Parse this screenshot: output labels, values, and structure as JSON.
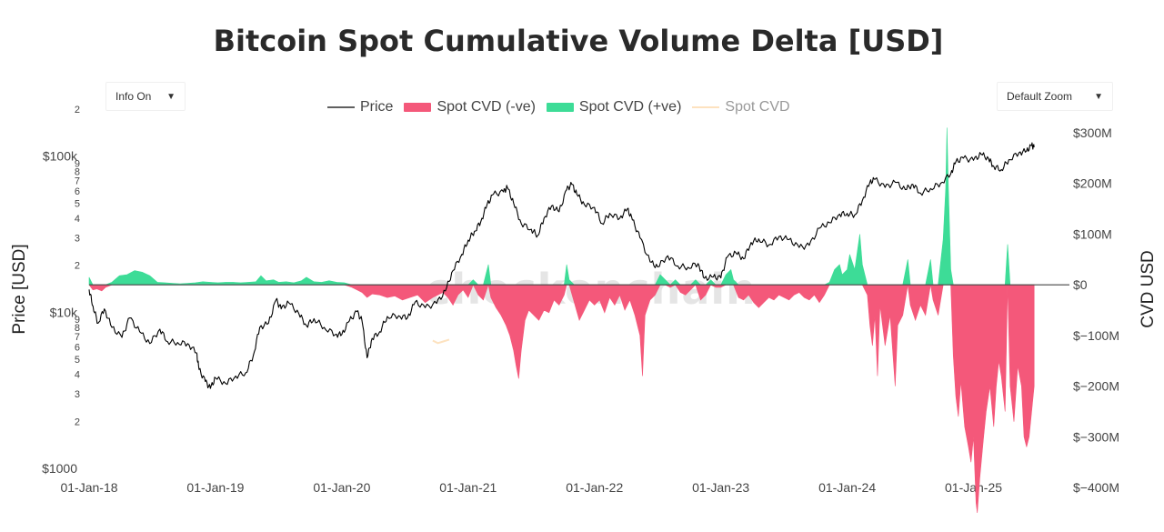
{
  "title": "Bitcoin Spot Cumulative Volume Delta [USD]",
  "controls": {
    "info_label": "Info On",
    "zoom_label": "Default Zoom"
  },
  "watermark": "checkonchain",
  "colors": {
    "price": "#000000",
    "cvd_neg": "#f4587a",
    "cvd_pos": "#3ddc97",
    "cvd": "#fde2bf"
  },
  "chart_data": {
    "type": "line+area",
    "title": "Bitcoin Spot Cumulative Volume Delta [USD]",
    "x_ticks": [
      "01-Jan-18",
      "01-Jan-19",
      "01-Jan-20",
      "01-Jan-21",
      "01-Jan-22",
      "01-Jan-23",
      "01-Jan-24",
      "01-Jan-25"
    ],
    "x_range": [
      2018.0,
      2025.5
    ],
    "y_left": {
      "label": "Price [USD]",
      "scale": "log",
      "range": [
        1000,
        200000
      ],
      "major_ticks": [
        {
          "v": 1000,
          "t": "$1000"
        },
        {
          "v": 10000,
          "t": "$10k"
        },
        {
          "v": 100000,
          "t": "$100k"
        }
      ],
      "minor_ticks": [
        {
          "v": 2000,
          "t": "2"
        },
        {
          "v": 3000,
          "t": "3"
        },
        {
          "v": 4000,
          "t": "4"
        },
        {
          "v": 5000,
          "t": "5"
        },
        {
          "v": 6000,
          "t": "6"
        },
        {
          "v": 7000,
          "t": "7"
        },
        {
          "v": 8000,
          "t": "8"
        },
        {
          "v": 9000,
          "t": "9"
        },
        {
          "v": 20000,
          "t": "2"
        },
        {
          "v": 30000,
          "t": "3"
        },
        {
          "v": 40000,
          "t": "4"
        },
        {
          "v": 50000,
          "t": "5"
        },
        {
          "v": 60000,
          "t": "6"
        },
        {
          "v": 70000,
          "t": "7"
        },
        {
          "v": 80000,
          "t": "8"
        },
        {
          "v": 90000,
          "t": "9"
        },
        {
          "v": 200000,
          "t": "2"
        }
      ]
    },
    "y_right": {
      "label": "CVD USD",
      "range": [
        -450,
        300
      ],
      "ticks": [
        {
          "v": 300,
          "t": "$300M"
        },
        {
          "v": 200,
          "t": "$200M"
        },
        {
          "v": 100,
          "t": "$100M"
        },
        {
          "v": 0,
          "t": "$0"
        },
        {
          "v": -100,
          "t": "$−100M"
        },
        {
          "v": -200,
          "t": "$−200M"
        },
        {
          "v": -300,
          "t": "$−300M"
        },
        {
          "v": -400,
          "t": "$−400M"
        }
      ]
    },
    "legend": [
      {
        "name": "Price",
        "key": "price",
        "style": "line",
        "visible": true
      },
      {
        "name": "Spot CVD (-ve)",
        "key": "cvd_neg",
        "style": "area",
        "visible": true
      },
      {
        "name": "Spot CVD (+ve)",
        "key": "cvd_pos",
        "style": "area",
        "visible": true
      },
      {
        "name": "Spot CVD",
        "key": "cvd",
        "style": "line",
        "visible": false
      }
    ],
    "price_series": [
      [
        2018.0,
        14000
      ],
      [
        2018.03,
        11000
      ],
      [
        2018.07,
        8500
      ],
      [
        2018.12,
        10500
      ],
      [
        2018.18,
        8000
      ],
      [
        2018.26,
        6900
      ],
      [
        2018.32,
        9200
      ],
      [
        2018.4,
        7500
      ],
      [
        2018.48,
        6300
      ],
      [
        2018.56,
        7800
      ],
      [
        2018.62,
        6500
      ],
      [
        2018.7,
        6400
      ],
      [
        2018.78,
        6300
      ],
      [
        2018.85,
        5500
      ],
      [
        2018.87,
        4300
      ],
      [
        2018.92,
        3600
      ],
      [
        2018.96,
        3250
      ],
      [
        2019.0,
        3800
      ],
      [
        2019.08,
        3500
      ],
      [
        2019.16,
        3900
      ],
      [
        2019.24,
        4100
      ],
      [
        2019.3,
        5300
      ],
      [
        2019.35,
        8000
      ],
      [
        2019.42,
        8500
      ],
      [
        2019.48,
        12000
      ],
      [
        2019.52,
        10500
      ],
      [
        2019.58,
        11500
      ],
      [
        2019.66,
        9800
      ],
      [
        2019.72,
        8200
      ],
      [
        2019.78,
        9100
      ],
      [
        2019.86,
        8000
      ],
      [
        2019.95,
        7200
      ],
      [
        2020.0,
        7200
      ],
      [
        2020.06,
        8800
      ],
      [
        2020.12,
        10100
      ],
      [
        2020.16,
        8800
      ],
      [
        2020.2,
        5100
      ],
      [
        2020.24,
        6800
      ],
      [
        2020.3,
        7500
      ],
      [
        2020.36,
        9400
      ],
      [
        2020.45,
        9500
      ],
      [
        2020.52,
        9200
      ],
      [
        2020.58,
        11600
      ],
      [
        2020.66,
        10700
      ],
      [
        2020.75,
        11400
      ],
      [
        2020.82,
        13700
      ],
      [
        2020.88,
        18500
      ],
      [
        2020.95,
        23500
      ],
      [
        2021.0,
        29000
      ],
      [
        2021.05,
        33000
      ],
      [
        2021.1,
        38000
      ],
      [
        2021.15,
        49000
      ],
      [
        2021.2,
        57000
      ],
      [
        2021.28,
        59000
      ],
      [
        2021.31,
        63000
      ],
      [
        2021.36,
        50000
      ],
      [
        2021.42,
        37000
      ],
      [
        2021.5,
        34000
      ],
      [
        2021.55,
        31000
      ],
      [
        2021.6,
        40000
      ],
      [
        2021.66,
        48000
      ],
      [
        2021.72,
        44000
      ],
      [
        2021.78,
        61000
      ],
      [
        2021.82,
        66000
      ],
      [
        2021.86,
        57000
      ],
      [
        2021.92,
        49000
      ],
      [
        2022.0,
        47000
      ],
      [
        2022.06,
        37000
      ],
      [
        2022.12,
        43000
      ],
      [
        2022.2,
        40000
      ],
      [
        2022.26,
        46000
      ],
      [
        2022.3,
        39000
      ],
      [
        2022.36,
        30000
      ],
      [
        2022.44,
        21000
      ],
      [
        2022.5,
        19500
      ],
      [
        2022.58,
        23000
      ],
      [
        2022.66,
        19800
      ],
      [
        2022.74,
        19400
      ],
      [
        2022.82,
        20500
      ],
      [
        2022.87,
        16500
      ],
      [
        2022.94,
        16800
      ],
      [
        2023.0,
        16600
      ],
      [
        2023.05,
        22500
      ],
      [
        2023.12,
        24000
      ],
      [
        2023.18,
        22000
      ],
      [
        2023.24,
        28000
      ],
      [
        2023.3,
        29500
      ],
      [
        2023.38,
        27000
      ],
      [
        2023.46,
        30500
      ],
      [
        2023.54,
        29200
      ],
      [
        2023.62,
        26000
      ],
      [
        2023.7,
        26800
      ],
      [
        2023.78,
        34500
      ],
      [
        2023.86,
        37500
      ],
      [
        2023.94,
        42500
      ],
      [
        2024.0,
        43000
      ],
      [
        2024.06,
        42000
      ],
      [
        2024.12,
        52000
      ],
      [
        2024.18,
        68000
      ],
      [
        2024.22,
        71000
      ],
      [
        2024.3,
        63000
      ],
      [
        2024.38,
        68000
      ],
      [
        2024.46,
        61000
      ],
      [
        2024.52,
        66000
      ],
      [
        2024.58,
        58000
      ],
      [
        2024.66,
        62000
      ],
      [
        2024.74,
        67000
      ],
      [
        2024.82,
        77000
      ],
      [
        2024.86,
        92000
      ],
      [
        2024.92,
        97000
      ],
      [
        2025.0,
        94000
      ],
      [
        2025.06,
        103000
      ],
      [
        2025.12,
        96000
      ],
      [
        2025.16,
        86000
      ],
      [
        2025.22,
        82000
      ],
      [
        2025.28,
        95000
      ],
      [
        2025.36,
        105000
      ],
      [
        2025.42,
        108000
      ],
      [
        2025.46,
        117000
      ],
      [
        2025.48,
        114000
      ]
    ],
    "cvd_series": [
      [
        2018.0,
        15
      ],
      [
        2018.03,
        -10
      ],
      [
        2018.06,
        -8
      ],
      [
        2018.1,
        -12
      ],
      [
        2018.13,
        -5
      ],
      [
        2018.18,
        5
      ],
      [
        2018.24,
        18
      ],
      [
        2018.3,
        20
      ],
      [
        2018.36,
        28
      ],
      [
        2018.42,
        25
      ],
      [
        2018.48,
        18
      ],
      [
        2018.54,
        5
      ],
      [
        2018.6,
        4
      ],
      [
        2018.66,
        3
      ],
      [
        2018.72,
        2
      ],
      [
        2018.78,
        3
      ],
      [
        2018.84,
        4
      ],
      [
        2018.9,
        6
      ],
      [
        2018.96,
        5
      ],
      [
        2019.02,
        4
      ],
      [
        2019.08,
        5
      ],
      [
        2019.14,
        5
      ],
      [
        2019.2,
        4
      ],
      [
        2019.26,
        5
      ],
      [
        2019.32,
        6
      ],
      [
        2019.36,
        18
      ],
      [
        2019.4,
        8
      ],
      [
        2019.46,
        10
      ],
      [
        2019.5,
        5
      ],
      [
        2019.56,
        6
      ],
      [
        2019.62,
        4
      ],
      [
        2019.68,
        8
      ],
      [
        2019.72,
        15
      ],
      [
        2019.78,
        6
      ],
      [
        2019.84,
        5
      ],
      [
        2019.9,
        8
      ],
      [
        2019.96,
        5
      ],
      [
        2020.02,
        4
      ],
      [
        2020.08,
        -5
      ],
      [
        2020.12,
        -10
      ],
      [
        2020.16,
        -15
      ],
      [
        2020.2,
        -25
      ],
      [
        2020.24,
        -18
      ],
      [
        2020.3,
        -20
      ],
      [
        2020.36,
        -25
      ],
      [
        2020.42,
        -22
      ],
      [
        2020.48,
        -30
      ],
      [
        2020.54,
        -25
      ],
      [
        2020.6,
        -20
      ],
      [
        2020.66,
        -35
      ],
      [
        2020.72,
        -25
      ],
      [
        2020.76,
        -20
      ],
      [
        2020.8,
        -15
      ],
      [
        2020.84,
        -25
      ],
      [
        2020.88,
        -40
      ],
      [
        2020.92,
        -20
      ],
      [
        2020.96,
        -10
      ],
      [
        2021.0,
        -25
      ],
      [
        2021.04,
        10
      ],
      [
        2021.08,
        -20
      ],
      [
        2021.12,
        -30
      ],
      [
        2021.16,
        40
      ],
      [
        2021.18,
        -25
      ],
      [
        2021.22,
        -45
      ],
      [
        2021.26,
        -60
      ],
      [
        2021.3,
        -80
      ],
      [
        2021.33,
        -100
      ],
      [
        2021.36,
        -130
      ],
      [
        2021.38,
        -160
      ],
      [
        2021.4,
        -185
      ],
      [
        2021.42,
        -130
      ],
      [
        2021.45,
        -70
      ],
      [
        2021.48,
        -50
      ],
      [
        2021.52,
        -60
      ],
      [
        2021.56,
        -70
      ],
      [
        2021.6,
        -50
      ],
      [
        2021.64,
        -55
      ],
      [
        2021.68,
        -30
      ],
      [
        2021.72,
        -40
      ],
      [
        2021.76,
        -20
      ],
      [
        2021.78,
        40
      ],
      [
        2021.8,
        10
      ],
      [
        2021.84,
        -35
      ],
      [
        2021.88,
        -70
      ],
      [
        2021.92,
        -50
      ],
      [
        2021.96,
        -30
      ],
      [
        2022.0,
        -40
      ],
      [
        2022.04,
        -30
      ],
      [
        2022.08,
        -55
      ],
      [
        2022.12,
        -25
      ],
      [
        2022.16,
        -40
      ],
      [
        2022.2,
        -20
      ],
      [
        2022.24,
        -50
      ],
      [
        2022.28,
        -30
      ],
      [
        2022.32,
        -60
      ],
      [
        2022.36,
        -100
      ],
      [
        2022.38,
        -180
      ],
      [
        2022.4,
        -60
      ],
      [
        2022.44,
        -30
      ],
      [
        2022.48,
        -20
      ],
      [
        2022.52,
        20
      ],
      [
        2022.56,
        10
      ],
      [
        2022.6,
        -5
      ],
      [
        2022.64,
        10
      ],
      [
        2022.68,
        -15
      ],
      [
        2022.72,
        -20
      ],
      [
        2022.76,
        -10
      ],
      [
        2022.8,
        10
      ],
      [
        2022.84,
        -30
      ],
      [
        2022.88,
        -20
      ],
      [
        2022.92,
        10
      ],
      [
        2022.96,
        -5
      ],
      [
        2023.0,
        -5
      ],
      [
        2023.04,
        20
      ],
      [
        2023.08,
        30
      ],
      [
        2023.1,
        10
      ],
      [
        2023.14,
        -25
      ],
      [
        2023.18,
        -30
      ],
      [
        2023.22,
        -20
      ],
      [
        2023.26,
        -35
      ],
      [
        2023.3,
        -45
      ],
      [
        2023.34,
        -35
      ],
      [
        2023.38,
        -25
      ],
      [
        2023.42,
        -30
      ],
      [
        2023.46,
        -20
      ],
      [
        2023.5,
        -25
      ],
      [
        2023.54,
        -30
      ],
      [
        2023.58,
        -20
      ],
      [
        2023.62,
        -15
      ],
      [
        2023.66,
        -25
      ],
      [
        2023.7,
        -30
      ],
      [
        2023.74,
        -20
      ],
      [
        2023.78,
        -35
      ],
      [
        2023.82,
        -20
      ],
      [
        2023.86,
        5
      ],
      [
        2023.9,
        30
      ],
      [
        2023.94,
        40
      ],
      [
        2023.96,
        20
      ],
      [
        2024.0,
        30
      ],
      [
        2024.02,
        60
      ],
      [
        2024.06,
        30
      ],
      [
        2024.1,
        100
      ],
      [
        2024.12,
        40
      ],
      [
        2024.16,
        -20
      ],
      [
        2024.18,
        -80
      ],
      [
        2024.2,
        -120
      ],
      [
        2024.22,
        -60
      ],
      [
        2024.24,
        -180
      ],
      [
        2024.26,
        -40
      ],
      [
        2024.3,
        -120
      ],
      [
        2024.34,
        -60
      ],
      [
        2024.38,
        -200
      ],
      [
        2024.4,
        -80
      ],
      [
        2024.44,
        -60
      ],
      [
        2024.48,
        50
      ],
      [
        2024.5,
        -40
      ],
      [
        2024.54,
        -70
      ],
      [
        2024.58,
        -40
      ],
      [
        2024.62,
        -60
      ],
      [
        2024.66,
        50
      ],
      [
        2024.68,
        -30
      ],
      [
        2024.72,
        -60
      ],
      [
        2024.76,
        90
      ],
      [
        2024.78,
        190
      ],
      [
        2024.79,
        310
      ],
      [
        2024.8,
        200
      ],
      [
        2024.82,
        30
      ],
      [
        2024.84,
        -140
      ],
      [
        2024.86,
        -220
      ],
      [
        2024.88,
        -260
      ],
      [
        2024.9,
        -190
      ],
      [
        2024.93,
        -280
      ],
      [
        2024.96,
        -320
      ],
      [
        2024.98,
        -350
      ],
      [
        2025.0,
        -300
      ],
      [
        2025.02,
        -430
      ],
      [
        2025.03,
        -450
      ],
      [
        2025.05,
        -380
      ],
      [
        2025.08,
        -300
      ],
      [
        2025.1,
        -250
      ],
      [
        2025.13,
        -200
      ],
      [
        2025.16,
        -280
      ],
      [
        2025.18,
        -200
      ],
      [
        2025.2,
        -150
      ],
      [
        2025.22,
        -180
      ],
      [
        2025.25,
        -250
      ],
      [
        2025.27,
        80
      ],
      [
        2025.29,
        -200
      ],
      [
        2025.32,
        -270
      ],
      [
        2025.35,
        -160
      ],
      [
        2025.38,
        -200
      ],
      [
        2025.4,
        -300
      ],
      [
        2025.42,
        -320
      ],
      [
        2025.44,
        -300
      ],
      [
        2025.46,
        -250
      ],
      [
        2025.48,
        -200
      ]
    ],
    "cvd_line_fragment": [
      [
        2020.72,
        -110
      ],
      [
        2020.76,
        -115
      ],
      [
        2020.8,
        -112
      ],
      [
        2020.85,
        -108
      ]
    ]
  }
}
